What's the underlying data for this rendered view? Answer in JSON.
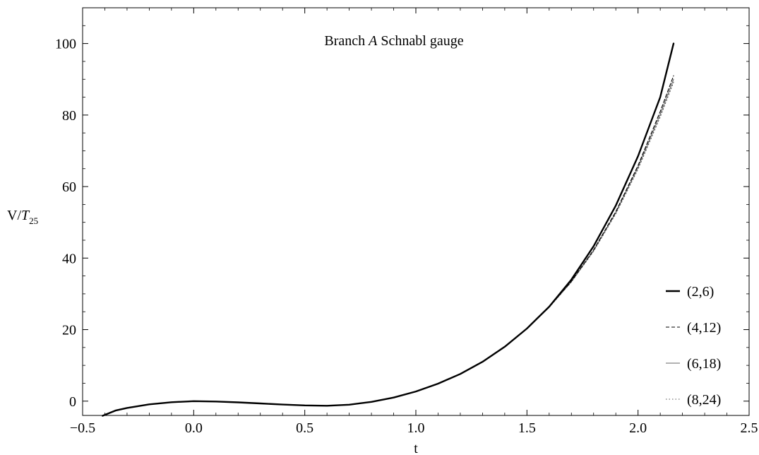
{
  "chart_data": {
    "type": "line",
    "title_parts": [
      "Branch ",
      "A",
      " Schnabl gauge"
    ],
    "xlabel": "t",
    "ylabel_parts": [
      "V/",
      "T",
      "25"
    ],
    "xlim": [
      -0.5,
      2.5
    ],
    "ylim": [
      -4,
      110
    ],
    "x_ticks": [
      -0.5,
      0.0,
      0.5,
      1.0,
      1.5,
      2.0,
      2.5
    ],
    "x_tick_labels": [
      "−0.5",
      "0.0",
      "0.5",
      "1.0",
      "1.5",
      "2.0",
      "2.5"
    ],
    "y_ticks": [
      0,
      20,
      40,
      60,
      80,
      100
    ],
    "y_tick_labels": [
      "0",
      "20",
      "40",
      "60",
      "80",
      "100"
    ],
    "grid": false,
    "legend_position": "bottom-right",
    "series": [
      {
        "name": "(2,6)",
        "style": "solid-thick",
        "color": "#000000",
        "x": [
          -0.41,
          -0.35,
          -0.3,
          -0.2,
          -0.1,
          0.0,
          0.1,
          0.2,
          0.3,
          0.4,
          0.5,
          0.6,
          0.7,
          0.8,
          0.9,
          1.0,
          1.1,
          1.2,
          1.3,
          1.4,
          1.5,
          1.6,
          1.7,
          1.8,
          1.9,
          2.0,
          2.1,
          2.16
        ],
        "y": [
          -4.1,
          -2.6,
          -1.9,
          -0.9,
          -0.3,
          0,
          -0.1,
          -0.35,
          -0.65,
          -0.95,
          -1.2,
          -1.3,
          -1.0,
          -0.2,
          1.0,
          2.7,
          4.9,
          7.6,
          11.0,
          15.2,
          20.3,
          26.4,
          34.0,
          43.3,
          54.7,
          68.5,
          85.0,
          100.0
        ]
      },
      {
        "name": "(4,12)",
        "style": "dashed",
        "color": "#000000",
        "x": [
          -0.41,
          -0.35,
          -0.3,
          -0.2,
          -0.1,
          0.0,
          0.1,
          0.2,
          0.3,
          0.4,
          0.5,
          0.6,
          0.7,
          0.8,
          0.9,
          1.0,
          1.1,
          1.2,
          1.3,
          1.4,
          1.5,
          1.6,
          1.7,
          1.8,
          1.9,
          2.0,
          2.1,
          2.16
        ],
        "y": [
          -4.0,
          -2.5,
          -1.85,
          -0.9,
          -0.3,
          0,
          -0.1,
          -0.35,
          -0.65,
          -0.95,
          -1.2,
          -1.3,
          -1.0,
          -0.2,
          1.0,
          2.7,
          4.9,
          7.6,
          11.0,
          15.2,
          20.3,
          26.3,
          33.5,
          42.3,
          53.0,
          65.9,
          81.0,
          91.0
        ]
      },
      {
        "name": "(6,18)",
        "style": "solid-thin",
        "color": "#666666",
        "x": [
          -0.41,
          -0.35,
          -0.3,
          -0.2,
          -0.1,
          0.0,
          0.1,
          0.2,
          0.3,
          0.4,
          0.5,
          0.6,
          0.7,
          0.8,
          0.9,
          1.0,
          1.1,
          1.2,
          1.3,
          1.4,
          1.5,
          1.6,
          1.7,
          1.8,
          1.9,
          2.0,
          2.1,
          2.16
        ],
        "y": [
          -4.0,
          -2.5,
          -1.85,
          -0.9,
          -0.3,
          0,
          -0.1,
          -0.35,
          -0.65,
          -0.95,
          -1.2,
          -1.3,
          -1.0,
          -0.2,
          1.0,
          2.7,
          4.9,
          7.6,
          11.0,
          15.2,
          20.3,
          26.3,
          33.4,
          42.1,
          52.7,
          65.4,
          80.2,
          90.0
        ]
      },
      {
        "name": "(8,24)",
        "style": "dotted",
        "color": "#555555",
        "x": [
          -0.41,
          -0.35,
          -0.3,
          -0.2,
          -0.1,
          0.0,
          0.1,
          0.2,
          0.3,
          0.4,
          0.5,
          0.6,
          0.7,
          0.8,
          0.9,
          1.0,
          1.1,
          1.2,
          1.3,
          1.4,
          1.5,
          1.6,
          1.7,
          1.8,
          1.9,
          2.0,
          2.1,
          2.16
        ],
        "y": [
          -4.0,
          -2.5,
          -1.85,
          -0.9,
          -0.3,
          0,
          -0.1,
          -0.35,
          -0.65,
          -0.95,
          -1.2,
          -1.3,
          -1.0,
          -0.2,
          1.0,
          2.7,
          4.9,
          7.6,
          11.0,
          15.2,
          20.3,
          26.2,
          33.3,
          41.9,
          52.4,
          64.9,
          79.5,
          89.2
        ]
      }
    ]
  }
}
